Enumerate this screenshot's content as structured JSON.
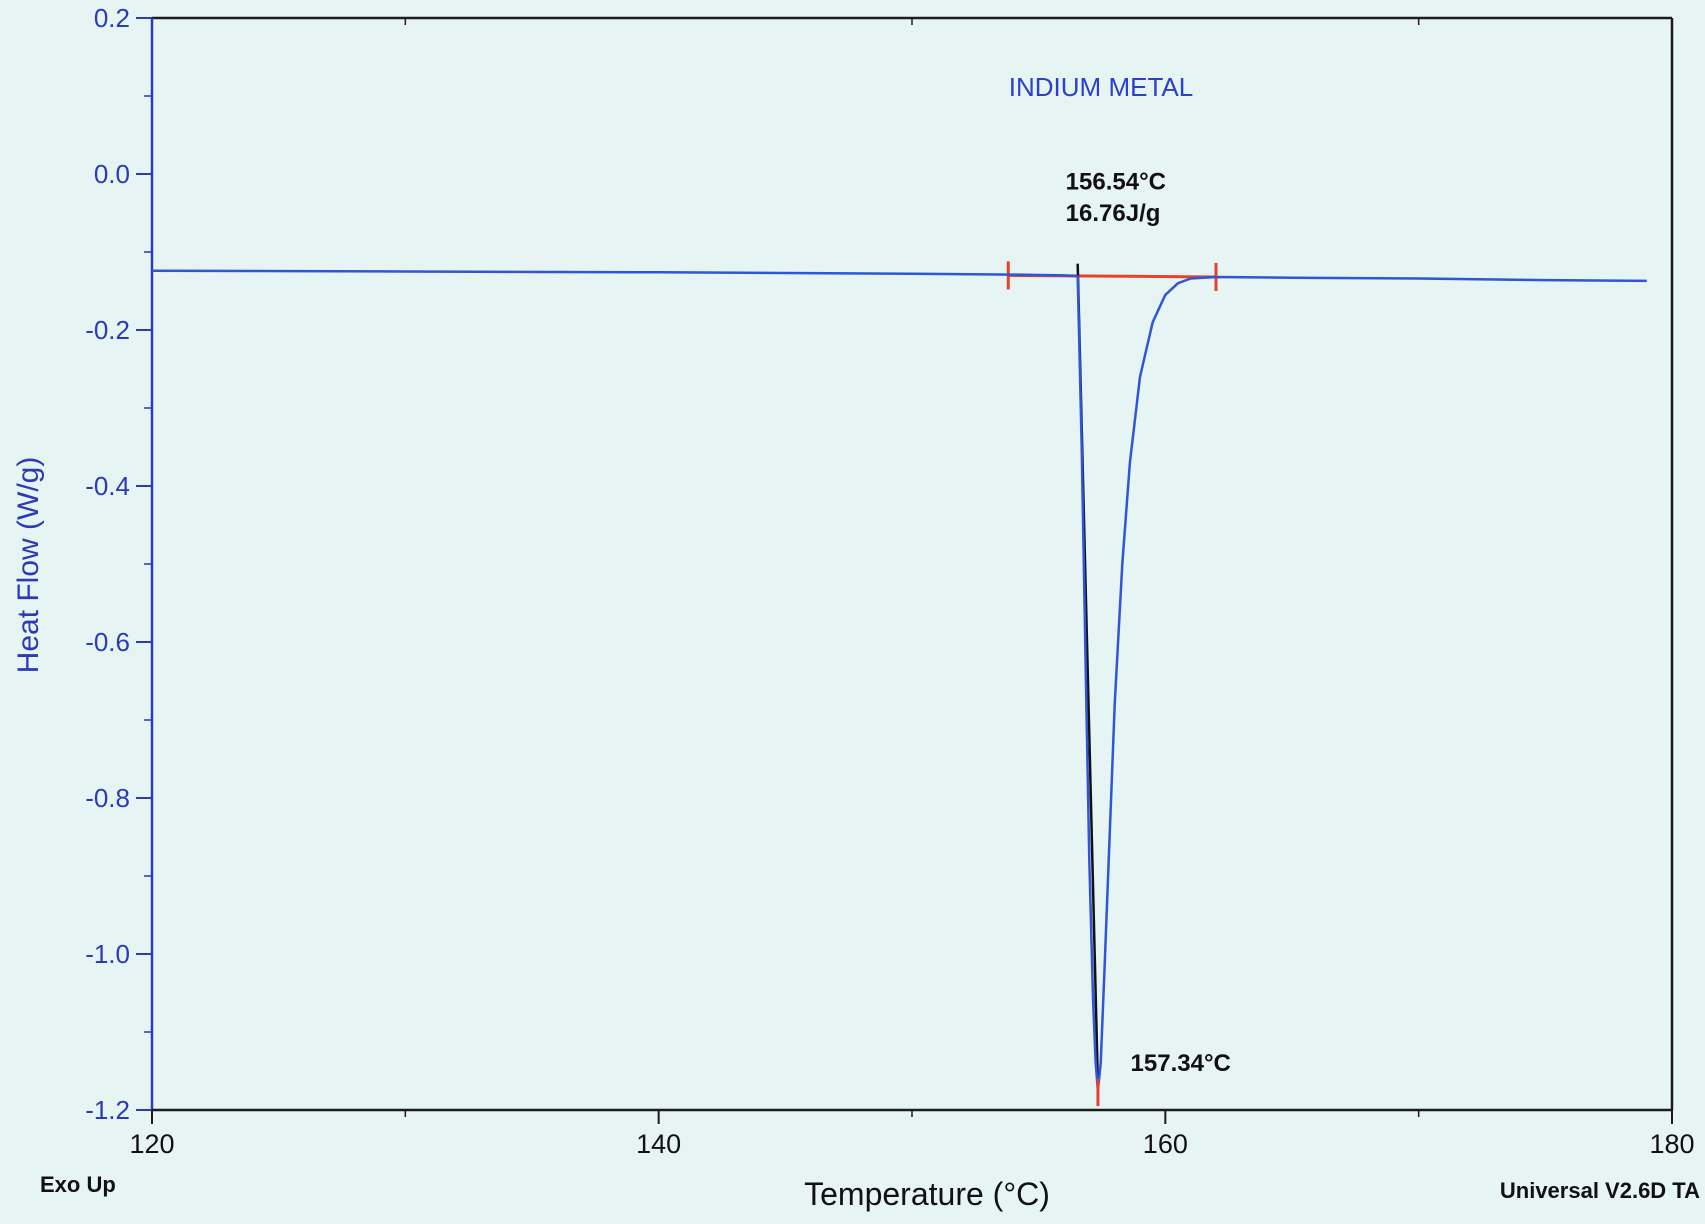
{
  "chart_data": {
    "type": "line",
    "title": "INDIUM METAL",
    "xlabel": "Temperature (°C)",
    "ylabel": "Heat Flow (W/g)",
    "xlim": [
      120,
      180
    ],
    "ylim": [
      -1.2,
      0.2
    ],
    "x_ticks": [
      {
        "value": 120,
        "label": "120"
      },
      {
        "value": 140,
        "label": "140"
      },
      {
        "value": 160,
        "label": "160"
      },
      {
        "value": 180,
        "label": "180"
      }
    ],
    "y_ticks": [
      {
        "value": 0.2,
        "label": "0.2"
      },
      {
        "value": 0.0,
        "label": "0.0"
      },
      {
        "value": -0.2,
        "label": "-0.2"
      },
      {
        "value": -0.4,
        "label": "-0.4"
      },
      {
        "value": -0.6,
        "label": "-0.6"
      },
      {
        "value": -0.8,
        "label": "-0.8"
      },
      {
        "value": -1.0,
        "label": "-1.0"
      },
      {
        "value": -1.2,
        "label": "-1.2"
      }
    ],
    "grid": false,
    "series": [
      {
        "color": "#2f55d8",
        "points": [
          [
            120,
            -0.124
          ],
          [
            130,
            -0.125
          ],
          [
            140,
            -0.126
          ],
          [
            150,
            -0.128
          ],
          [
            154,
            -0.129
          ],
          [
            156,
            -0.13
          ],
          [
            156.54,
            -0.131
          ],
          [
            156.7,
            -0.35
          ],
          [
            156.85,
            -0.62
          ],
          [
            157.0,
            -0.88
          ],
          [
            157.15,
            -1.06
          ],
          [
            157.25,
            -1.14
          ],
          [
            157.34,
            -1.175
          ],
          [
            157.45,
            -1.14
          ],
          [
            157.6,
            -1.02
          ],
          [
            157.8,
            -0.85
          ],
          [
            158.0,
            -0.68
          ],
          [
            158.3,
            -0.5
          ],
          [
            158.6,
            -0.37
          ],
          [
            159.0,
            -0.26
          ],
          [
            159.5,
            -0.19
          ],
          [
            160.0,
            -0.155
          ],
          [
            160.5,
            -0.14
          ],
          [
            161.0,
            -0.134
          ],
          [
            162.0,
            -0.132
          ],
          [
            165,
            -0.133
          ],
          [
            170,
            -0.134
          ],
          [
            175,
            -0.136
          ],
          [
            179,
            -0.137
          ]
        ]
      }
    ],
    "onset_tangent": {
      "color": "#111111",
      "from": [
        156.54,
        -0.115
      ],
      "to": [
        157.34,
        -1.17
      ]
    },
    "baseline": {
      "color": "#e8402a",
      "from": [
        153.8,
        -0.13
      ],
      "to": [
        162.0,
        -0.132
      ]
    },
    "annotations": [
      {
        "id": "onset_temp",
        "text": "156.54°C",
        "x": 156.54,
        "y": -0.02
      },
      {
        "id": "enthalpy",
        "text": "16.76J/g",
        "x": 156.54,
        "y": -0.06
      },
      {
        "id": "peak_temp",
        "text": "157.34°C",
        "x": 159.1,
        "y": -1.15
      }
    ],
    "corner_notes": {
      "left": "Exo Up",
      "right": "Universal V2.6D TA"
    }
  },
  "colors": {
    "background": "#e6f4f3",
    "axis": "#1c1c1c",
    "y_label": "#2a3ab8",
    "title": "#2b3fd0",
    "curve": "#2f55d8",
    "baseline": "#e8402a",
    "tangent": "#111111"
  }
}
